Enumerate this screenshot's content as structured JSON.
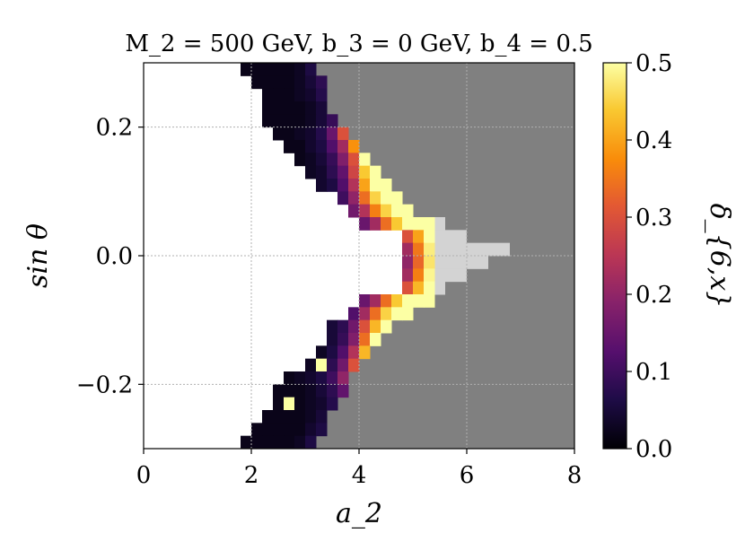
{
  "chart_data": {
    "type": "heatmap",
    "title": "M_2 = 500  GeV,  b_3 = 0  GeV,  b_4 = 0.5",
    "xlabel": "a_2",
    "ylabel": "sin θ",
    "colorbar_label": "δ_{6,x}",
    "xlim": [
      0,
      8
    ],
    "ylim": [
      -0.3,
      0.3
    ],
    "clim": [
      0.0,
      0.5
    ],
    "colormap": "inferno",
    "x_ticks": [
      "0",
      "2",
      "4",
      "6",
      "8"
    ],
    "y_ticks": [
      "−0.2",
      "0.0",
      "0.2"
    ],
    "colorbar_ticks": [
      "0.0",
      "0.1",
      "0.2",
      "0.3",
      "0.4",
      "0.5"
    ],
    "grid": true,
    "cell_size": {
      "dx": 0.2,
      "dy": 0.02
    },
    "regions": {
      "allowed_white": "left of the boundary band",
      "excluded_gray": "#808080",
      "light_gray_region": "#d3d3d3"
    },
    "rows": [
      {
        "y": 0.29,
        "cells": [
          [
            1.9,
            0.02
          ],
          [
            2.1,
            0.02
          ],
          [
            2.3,
            0.02
          ],
          [
            2.5,
            0.02
          ],
          [
            2.7,
            0.02
          ],
          [
            2.9,
            0.03
          ],
          [
            3.1,
            0.06
          ]
        ]
      },
      {
        "y": 0.27,
        "cells": [
          [
            2.1,
            0.02
          ],
          [
            2.3,
            0.02
          ],
          [
            2.5,
            0.02
          ],
          [
            2.7,
            0.02
          ],
          [
            2.9,
            0.03
          ],
          [
            3.1,
            0.05
          ],
          [
            3.3,
            0.08
          ]
        ]
      },
      {
        "y": 0.25,
        "cells": [
          [
            2.3,
            0.02
          ],
          [
            2.5,
            0.02
          ],
          [
            2.7,
            0.02
          ],
          [
            2.9,
            0.03
          ],
          [
            3.1,
            0.04
          ],
          [
            3.3,
            0.07
          ]
        ]
      },
      {
        "y": 0.23,
        "cells": [
          [
            2.3,
            0.02
          ],
          [
            2.5,
            0.02
          ],
          [
            2.7,
            0.02
          ],
          [
            2.9,
            0.02
          ],
          [
            3.1,
            0.03
          ],
          [
            3.3,
            0.05
          ]
        ]
      },
      {
        "y": 0.21,
        "cells": [
          [
            2.3,
            0.02
          ],
          [
            2.5,
            0.02
          ],
          [
            2.7,
            0.02
          ],
          [
            2.9,
            0.02
          ],
          [
            3.1,
            0.03
          ],
          [
            3.3,
            0.05
          ],
          [
            3.5,
            0.09
          ]
        ]
      },
      {
        "y": 0.19,
        "cells": [
          [
            2.5,
            0.02
          ],
          [
            2.7,
            0.02
          ],
          [
            2.9,
            0.03
          ],
          [
            3.1,
            0.04
          ],
          [
            3.3,
            0.07
          ],
          [
            3.5,
            0.15
          ],
          [
            3.7,
            0.3
          ]
        ]
      },
      {
        "y": 0.17,
        "cells": [
          [
            2.7,
            0.02
          ],
          [
            2.9,
            0.02
          ],
          [
            3.1,
            0.04
          ],
          [
            3.3,
            0.06
          ],
          [
            3.5,
            0.12
          ],
          [
            3.7,
            0.22
          ],
          [
            3.9,
            0.38
          ]
        ]
      },
      {
        "y": 0.15,
        "cells": [
          [
            2.9,
            0.02
          ],
          [
            3.1,
            0.03
          ],
          [
            3.3,
            0.05
          ],
          [
            3.5,
            0.09
          ],
          [
            3.7,
            0.18
          ],
          [
            3.9,
            0.3
          ],
          [
            4.1,
            0.5
          ]
        ]
      },
      {
        "y": 0.13,
        "cells": [
          [
            3.1,
            0.03
          ],
          [
            3.3,
            0.04
          ],
          [
            3.5,
            0.08
          ],
          [
            3.7,
            0.14
          ],
          [
            3.9,
            0.28
          ],
          [
            4.1,
            0.44
          ],
          [
            4.3,
            0.5
          ]
        ]
      },
      {
        "y": 0.11,
        "cells": [
          [
            3.3,
            0.04
          ],
          [
            3.5,
            0.06
          ],
          [
            3.7,
            0.12
          ],
          [
            3.9,
            0.24
          ],
          [
            4.1,
            0.4
          ],
          [
            4.3,
            0.5
          ],
          [
            4.5,
            0.5
          ]
        ]
      },
      {
        "y": 0.09,
        "cells": [
          [
            3.7,
            0.1
          ],
          [
            3.9,
            0.2
          ],
          [
            4.1,
            0.34
          ],
          [
            4.3,
            0.45
          ],
          [
            4.5,
            0.5
          ],
          [
            4.7,
            0.5
          ]
        ]
      },
      {
        "y": 0.07,
        "cells": [
          [
            3.9,
            0.16
          ],
          [
            4.1,
            0.24
          ],
          [
            4.3,
            0.36
          ],
          [
            4.5,
            0.45
          ],
          [
            4.7,
            0.5
          ],
          [
            4.9,
            0.5
          ]
        ]
      },
      {
        "y": 0.05,
        "cells": [
          [
            4.1,
            0.15
          ],
          [
            4.3,
            0.22
          ],
          [
            4.5,
            0.34
          ],
          [
            4.7,
            0.44
          ],
          [
            4.9,
            0.5
          ],
          [
            5.1,
            0.5
          ],
          [
            5.3,
            0.5
          ]
        ]
      },
      {
        "y": 0.03,
        "cells": [
          [
            4.9,
            0.3
          ],
          [
            5.1,
            0.4
          ],
          [
            5.3,
            0.5
          ]
        ]
      },
      {
        "y": 0.01,
        "cells": [
          [
            4.9,
            0.22
          ],
          [
            5.1,
            0.35
          ],
          [
            5.3,
            0.48
          ]
        ]
      },
      {
        "y": -0.01,
        "cells": [
          [
            4.9,
            0.2
          ],
          [
            5.1,
            0.33
          ],
          [
            5.3,
            0.47
          ]
        ]
      },
      {
        "y": -0.03,
        "cells": [
          [
            4.9,
            0.22
          ],
          [
            5.1,
            0.36
          ],
          [
            5.3,
            0.49
          ]
        ]
      },
      {
        "y": -0.05,
        "cells": [
          [
            4.9,
            0.3
          ],
          [
            5.1,
            0.42
          ],
          [
            5.3,
            0.5
          ]
        ]
      },
      {
        "y": -0.07,
        "cells": [
          [
            4.1,
            0.15
          ],
          [
            4.3,
            0.22
          ],
          [
            4.5,
            0.34
          ],
          [
            4.7,
            0.44
          ],
          [
            4.9,
            0.5
          ],
          [
            5.1,
            0.5
          ],
          [
            5.3,
            0.5
          ]
        ]
      },
      {
        "y": -0.09,
        "cells": [
          [
            3.9,
            0.12
          ],
          [
            4.1,
            0.22
          ],
          [
            4.3,
            0.34
          ],
          [
            4.5,
            0.45
          ],
          [
            4.7,
            0.5
          ],
          [
            4.9,
            0.5
          ]
        ]
      },
      {
        "y": -0.11,
        "cells": [
          [
            3.5,
            0.05
          ],
          [
            3.7,
            0.08
          ],
          [
            3.9,
            0.16
          ],
          [
            4.1,
            0.3
          ],
          [
            4.3,
            0.42
          ],
          [
            4.5,
            0.5
          ]
        ]
      },
      {
        "y": -0.13,
        "cells": [
          [
            3.5,
            0.05
          ],
          [
            3.7,
            0.09
          ],
          [
            3.9,
            0.18
          ],
          [
            4.1,
            0.34
          ],
          [
            4.3,
            0.5
          ]
        ]
      },
      {
        "y": -0.15,
        "cells": [
          [
            3.3,
            0.03
          ],
          [
            3.5,
            0.06
          ],
          [
            3.7,
            0.12
          ],
          [
            3.9,
            0.24
          ],
          [
            4.1,
            0.42
          ]
        ]
      },
      {
        "y": -0.17,
        "cells": [
          [
            3.1,
            0.03
          ],
          [
            3.3,
            0.5
          ],
          [
            3.5,
            0.08
          ],
          [
            3.7,
            0.16
          ],
          [
            3.9,
            0.3
          ]
        ]
      },
      {
        "y": -0.19,
        "cells": [
          [
            2.7,
            0.02
          ],
          [
            2.9,
            0.03
          ],
          [
            3.1,
            0.04
          ],
          [
            3.3,
            0.06
          ],
          [
            3.5,
            0.1
          ],
          [
            3.7,
            0.2
          ]
        ]
      },
      {
        "y": -0.21,
        "cells": [
          [
            2.5,
            0.02
          ],
          [
            2.7,
            0.02
          ],
          [
            2.9,
            0.02
          ],
          [
            3.1,
            0.03
          ],
          [
            3.3,
            0.05
          ],
          [
            3.5,
            0.08
          ],
          [
            3.7,
            0.14
          ]
        ]
      },
      {
        "y": -0.23,
        "cells": [
          [
            2.5,
            0.02
          ],
          [
            2.7,
            0.5
          ],
          [
            2.9,
            0.02
          ],
          [
            3.1,
            0.03
          ],
          [
            3.3,
            0.04
          ],
          [
            3.5,
            0.07
          ]
        ]
      },
      {
        "y": -0.25,
        "cells": [
          [
            2.3,
            0.02
          ],
          [
            2.5,
            0.02
          ],
          [
            2.7,
            0.02
          ],
          [
            2.9,
            0.02
          ],
          [
            3.1,
            0.03
          ],
          [
            3.3,
            0.05
          ]
        ]
      },
      {
        "y": -0.27,
        "cells": [
          [
            2.1,
            0.02
          ],
          [
            2.3,
            0.02
          ],
          [
            2.5,
            0.02
          ],
          [
            2.7,
            0.02
          ],
          [
            2.9,
            0.02
          ],
          [
            3.1,
            0.04
          ],
          [
            3.3,
            0.06
          ]
        ]
      },
      {
        "y": -0.29,
        "cells": [
          [
            1.9,
            0.02
          ],
          [
            2.1,
            0.02
          ],
          [
            2.3,
            0.02
          ],
          [
            2.5,
            0.02
          ],
          [
            2.7,
            0.02
          ],
          [
            2.9,
            0.03
          ],
          [
            3.1,
            0.06
          ]
        ]
      }
    ],
    "light_gray_rows": [
      {
        "y": 0.05,
        "x": [
          5.5,
          5.5
        ]
      },
      {
        "y": 0.03,
        "x": [
          5.5,
          5.9
        ]
      },
      {
        "y": 0.01,
        "x": [
          5.5,
          6.7
        ]
      },
      {
        "y": -0.01,
        "x": [
          5.5,
          6.3
        ]
      },
      {
        "y": -0.03,
        "x": [
          5.5,
          5.9
        ]
      },
      {
        "y": -0.05,
        "x": [
          5.5,
          5.5
        ]
      }
    ],
    "white_rows": [
      {
        "y": 0.05,
        "x": [
          0,
          4.0
        ]
      },
      {
        "y": 0.03,
        "x": [
          0,
          4.8
        ]
      },
      {
        "y": 0.01,
        "x": [
          0,
          4.8
        ]
      },
      {
        "y": -0.01,
        "x": [
          0,
          4.8
        ]
      },
      {
        "y": -0.03,
        "x": [
          0,
          4.8
        ]
      },
      {
        "y": -0.05,
        "x": [
          0,
          4.8
        ]
      }
    ]
  }
}
